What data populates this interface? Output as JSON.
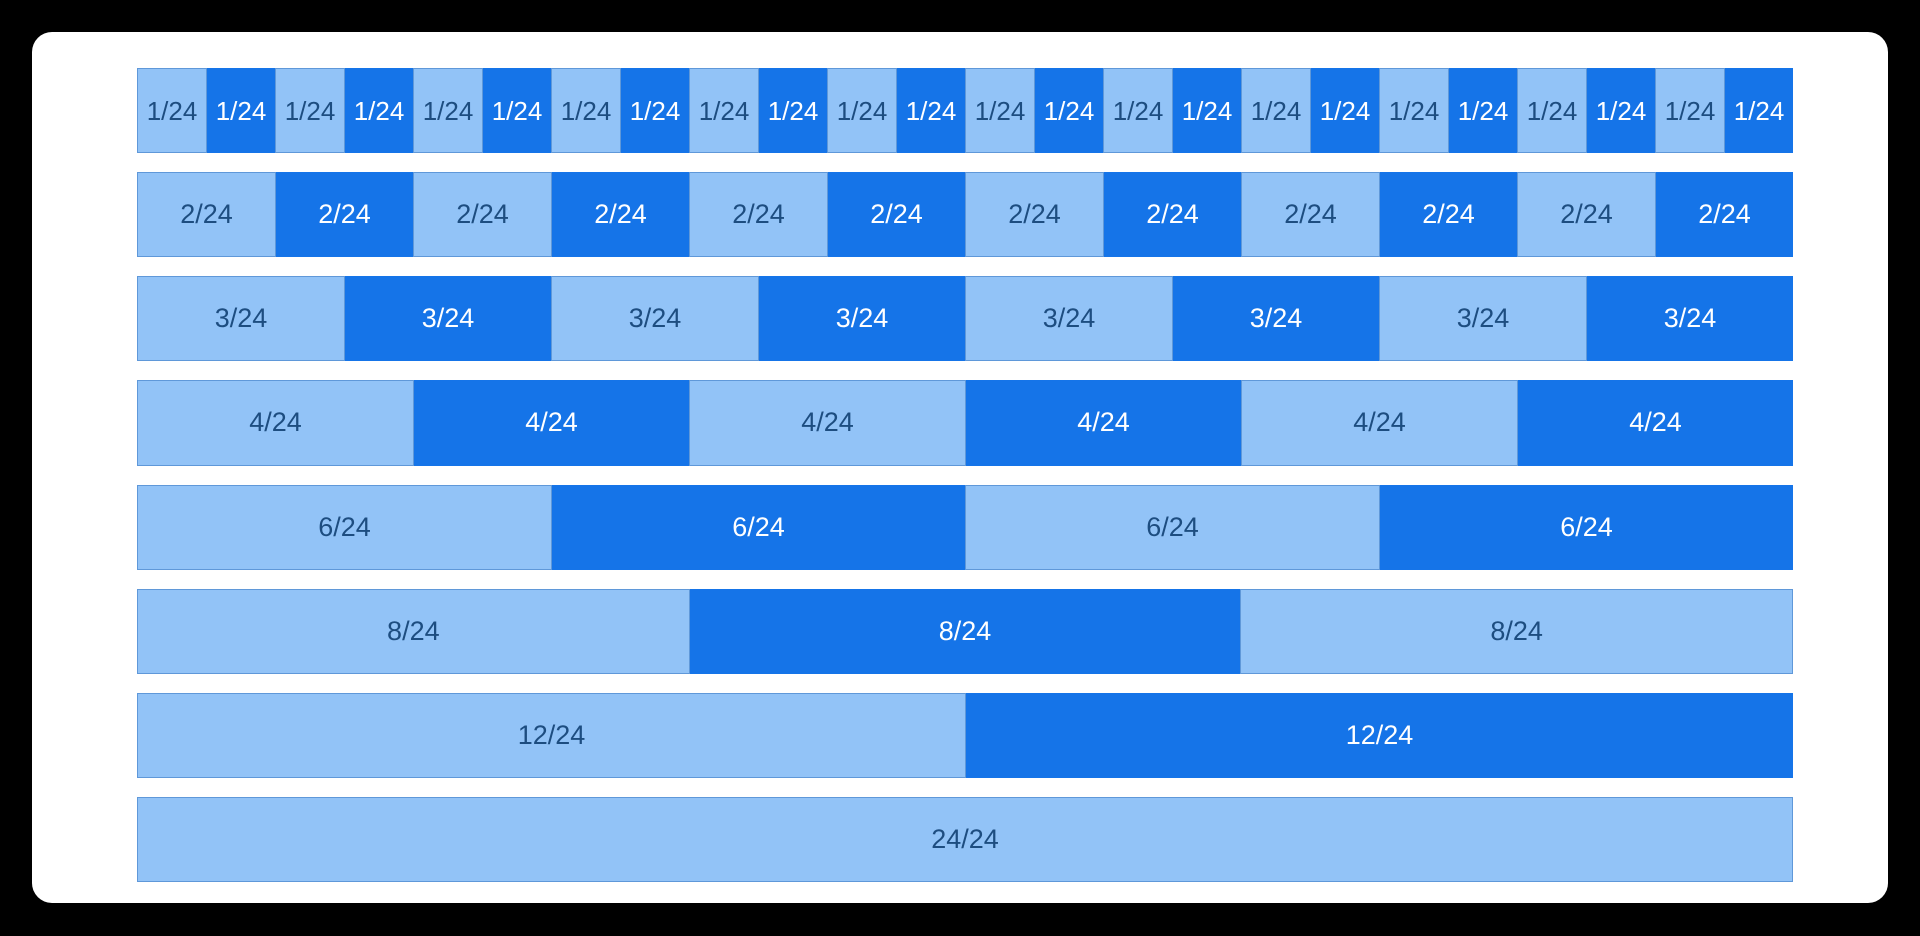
{
  "page": {
    "background": "#000000"
  },
  "card": {
    "background": "#ffffff"
  },
  "colors": {
    "cell_light_bg": "#92c3f7",
    "cell_dark_bg": "#1574e8",
    "cell_border": "#5f98d9",
    "text_on_light": "#1d4d80",
    "text_on_dark": "#ffffff"
  },
  "grid": {
    "columns_total": 24,
    "rows": [
      {
        "label": "1/24",
        "cells": 24
      },
      {
        "label": "2/24",
        "cells": 12
      },
      {
        "label": "3/24",
        "cells": 8
      },
      {
        "label": "4/24",
        "cells": 6
      },
      {
        "label": "6/24",
        "cells": 4
      },
      {
        "label": "8/24",
        "cells": 3
      },
      {
        "label": "12/24",
        "cells": 2
      },
      {
        "label": "24/24",
        "cells": 1
      }
    ]
  }
}
